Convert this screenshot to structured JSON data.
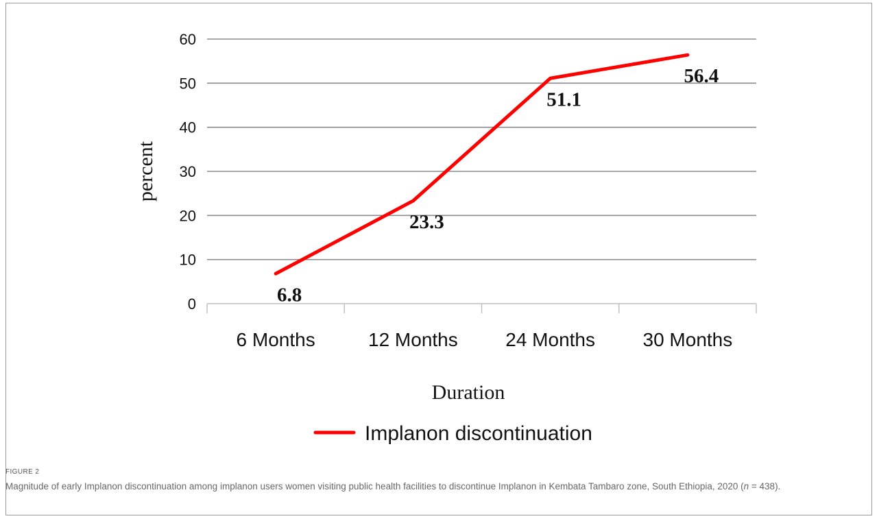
{
  "chart_data": {
    "type": "line",
    "categories": [
      "6 Months",
      "12 Months",
      "24 Months",
      "30 Months"
    ],
    "series": [
      {
        "name": "Implanon discontinuation",
        "values": [
          6.8,
          23.3,
          51.1,
          56.4
        ],
        "color": "#ff0000"
      }
    ],
    "data_labels": [
      "6.8",
      "23.3",
      "51.1",
      "56.4"
    ],
    "xlabel": "Duration",
    "ylabel": "percent",
    "ylim": [
      0,
      60
    ],
    "yticks": [
      0,
      10,
      20,
      30,
      40,
      50,
      60
    ],
    "grid": true,
    "legend": "bottom"
  },
  "figure": {
    "label": "FIGURE 2",
    "caption_main": "Magnitude of early Implanon discontinuation among implanon users women visiting public health facilities to discontinue Implanon in Kembata Tambaro zone, South Ethiopia, 2020 (",
    "caption_n": "n",
    "caption_tail": " = 438)."
  }
}
